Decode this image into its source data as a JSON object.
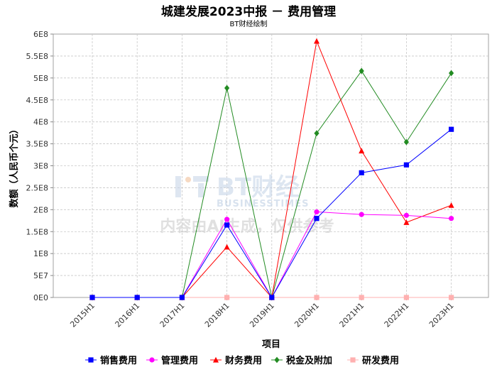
{
  "title": "城建发展2023中报 － 费用管理",
  "subtitle": "BT财经绘制",
  "watermark": {
    "logo": "BT财经",
    "logo_sub": "BUSINESSTIMES",
    "text": "内容由AI生成，仅供参考"
  },
  "chart_data": {
    "type": "line",
    "xlabel": "项目",
    "ylabel": "数额（人民币个元）",
    "categories": [
      "2015H1",
      "2016H1",
      "2017H1",
      "2018H1",
      "2019H1",
      "2020H1",
      "2021H1",
      "2022H1",
      "2023H1"
    ],
    "ylim": [
      0,
      600000000
    ],
    "yticks": [
      {
        "value": 0,
        "label": "0E0"
      },
      {
        "value": 50000000,
        "label": "5E7"
      },
      {
        "value": 100000000,
        "label": "1E8"
      },
      {
        "value": 150000000,
        "label": "1.5E8"
      },
      {
        "value": 200000000,
        "label": "2E8"
      },
      {
        "value": 250000000,
        "label": "2.5E8"
      },
      {
        "value": 300000000,
        "label": "3E8"
      },
      {
        "value": 350000000,
        "label": "3.5E8"
      },
      {
        "value": 400000000,
        "label": "4E8"
      },
      {
        "value": 450000000,
        "label": "4.5E8"
      },
      {
        "value": 500000000,
        "label": "5E8"
      },
      {
        "value": 550000000,
        "label": "5.5E8"
      },
      {
        "value": 600000000,
        "label": "6E8"
      }
    ],
    "grid": true,
    "legend_position": "bottom",
    "series": [
      {
        "name": "销售费用",
        "color": "#0000ff",
        "marker": "square",
        "values": [
          0,
          0,
          0,
          165000000,
          0,
          180000000,
          284000000,
          302000000,
          383000000
        ]
      },
      {
        "name": "管理费用",
        "color": "#ff00ff",
        "marker": "circle",
        "values": [
          0,
          0,
          0,
          178000000,
          0,
          195000000,
          189000000,
          187000000,
          180000000
        ]
      },
      {
        "name": "财务费用",
        "color": "#ff0000",
        "marker": "triangle",
        "values": [
          0,
          0,
          0,
          115000000,
          0,
          584000000,
          334000000,
          171000000,
          210000000
        ]
      },
      {
        "name": "税金及附加",
        "color": "#228b22",
        "marker": "diamond",
        "values": [
          0,
          0,
          0,
          477000000,
          0,
          374000000,
          516000000,
          354000000,
          511000000
        ]
      },
      {
        "name": "研发费用",
        "color": "#ffb0b0",
        "marker": "square",
        "values": [
          0,
          0,
          0,
          0,
          0,
          0,
          0,
          0,
          0
        ]
      }
    ]
  }
}
